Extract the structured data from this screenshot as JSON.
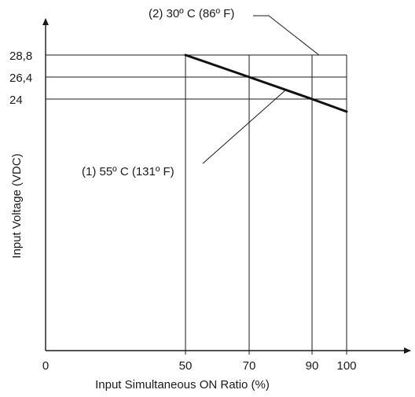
{
  "chart_data": {
    "type": "line",
    "xlabel": "Input Simultaneous ON Ratio  (%)",
    "ylabel": "Input Voltage (VDC)",
    "x_ticks": [
      "0",
      "50",
      "70",
      "90",
      "100"
    ],
    "y_ticks": [
      "28,8",
      "26,4",
      "24"
    ],
    "series": [
      {
        "points": [
          [
            50,
            28.8
          ],
          [
            70,
            26.4
          ],
          [
            90,
            24.0
          ],
          [
            100,
            22.8
          ]
        ]
      }
    ],
    "reference_lines": {
      "vertical_x": [
        50,
        70,
        90,
        100
      ],
      "horizontal_y": [
        28.8,
        26.4,
        24.0
      ]
    },
    "annotations": [
      {
        "id": "curve-30c",
        "text": "(2) 30º C (86º F)"
      },
      {
        "id": "curve-55c",
        "text": "(1) 55º C (131º F)"
      }
    ],
    "xlim": [
      0,
      112
    ],
    "ylim": [
      0,
      32
    ],
    "grid": false
  }
}
